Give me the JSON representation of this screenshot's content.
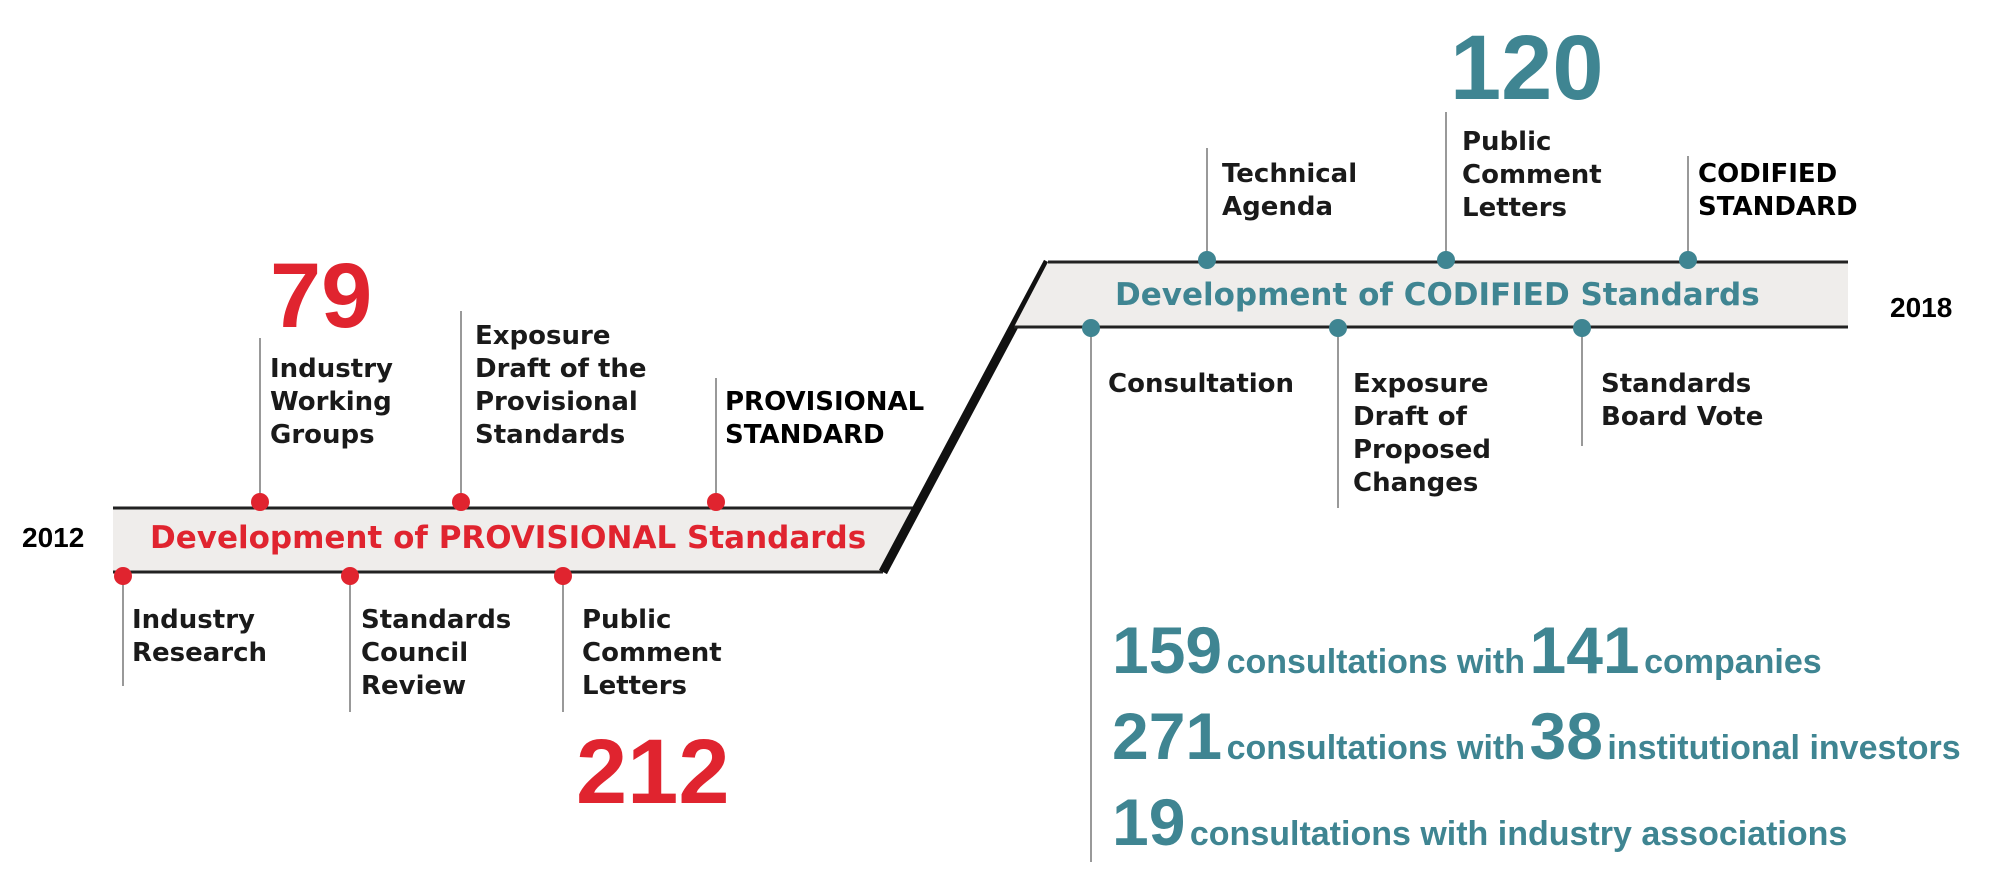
{
  "years": {
    "start": "2012",
    "end": "2018"
  },
  "provisional": {
    "banner": "Development of PROVISIONAL Standards",
    "color": "#e0242f",
    "above": [
      {
        "lines": [
          "Industry",
          "Working",
          "Groups"
        ],
        "count": "79"
      },
      {
        "lines": [
          "Exposure",
          "Draft of the",
          "Provisional",
          "Standards"
        ]
      },
      {
        "lines": [
          "PROVISIONAL",
          "STANDARD"
        ],
        "emphasis": true
      }
    ],
    "below": [
      {
        "lines": [
          "Industry",
          "Research"
        ]
      },
      {
        "lines": [
          "Standards",
          "Council",
          "Review"
        ]
      },
      {
        "lines": [
          "Public",
          "Comment",
          "Letters"
        ],
        "count": "212"
      }
    ]
  },
  "codified": {
    "banner": "Development of CODIFIED Standards",
    "color": "#3f8592",
    "above": [
      {
        "lines": [
          "Technical",
          "Agenda"
        ]
      },
      {
        "lines": [
          "Public",
          "Comment",
          "Letters"
        ],
        "count": "120"
      },
      {
        "lines": [
          "CODIFIED",
          "STANDARD"
        ],
        "emphasis": true
      }
    ],
    "below": [
      {
        "lines": [
          "Consultation"
        ]
      },
      {
        "lines": [
          "Exposure",
          "Draft of",
          "Proposed",
          "Changes"
        ]
      },
      {
        "lines": [
          "Standards",
          "Board Vote"
        ]
      }
    ]
  },
  "stats": [
    {
      "n1": "159",
      "t1": "consultations with",
      "n2": "141",
      "t2": "companies"
    },
    {
      "n1": "271",
      "t1": "consultations with",
      "n2": "38",
      "t2": "institutional investors"
    },
    {
      "n1": "19",
      "t1": "consultations with industry associations"
    }
  ],
  "colors": {
    "band": "#efedeb",
    "line": "#222222",
    "connector": "#999999"
  }
}
